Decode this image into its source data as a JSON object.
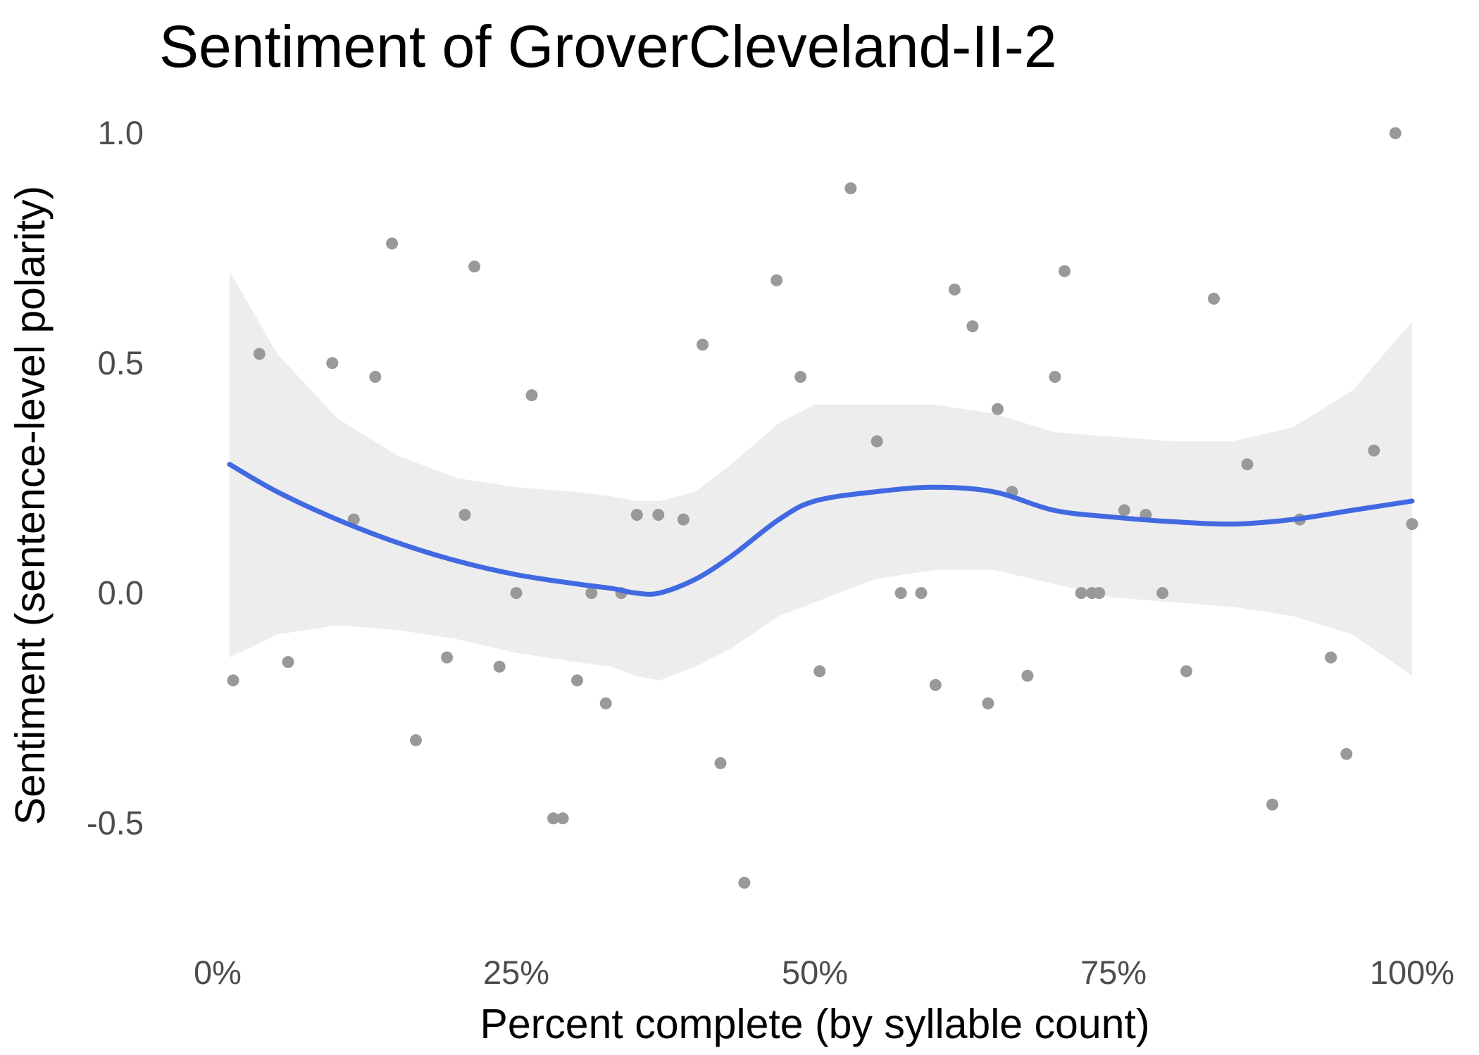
{
  "chart_data": {
    "type": "scatter",
    "title": "Sentiment of GroverCleveland-II-2",
    "xlabel": "Percent complete (by syllable count)",
    "ylabel": "Sentiment (sentence-level polarity)",
    "x_unit": "percent",
    "xlim": [
      -1,
      101
    ],
    "ylim": [
      -0.7,
      1.06
    ],
    "x_ticks": [
      0,
      25,
      50,
      75,
      100
    ],
    "x_tick_labels": [
      "0%",
      "25%",
      "50%",
      "75%",
      "100%"
    ],
    "y_ticks": [
      -0.5,
      0.0,
      0.5,
      1.0
    ],
    "y_tick_labels": [
      "-0.5",
      "0.0",
      "0.5",
      "1.0"
    ],
    "grid": false,
    "colors": {
      "points": "#999999",
      "smooth_line": "#4169E1",
      "confidence_band": "#ebebeb"
    },
    "points": [
      {
        "x": 1.3,
        "y": -0.19
      },
      {
        "x": 3.5,
        "y": 0.52
      },
      {
        "x": 5.9,
        "y": -0.15
      },
      {
        "x": 9.6,
        "y": 0.5
      },
      {
        "x": 11.4,
        "y": 0.16
      },
      {
        "x": 13.2,
        "y": 0.47
      },
      {
        "x": 14.6,
        "y": 0.76
      },
      {
        "x": 16.6,
        "y": -0.32
      },
      {
        "x": 19.2,
        "y": -0.14
      },
      {
        "x": 20.7,
        "y": 0.17
      },
      {
        "x": 21.5,
        "y": 0.71
      },
      {
        "x": 23.6,
        "y": -0.16
      },
      {
        "x": 25.0,
        "y": 0.0
      },
      {
        "x": 26.3,
        "y": 0.43
      },
      {
        "x": 28.1,
        "y": -0.49
      },
      {
        "x": 28.9,
        "y": -0.49
      },
      {
        "x": 30.1,
        "y": -0.19
      },
      {
        "x": 31.3,
        "y": 0.0
      },
      {
        "x": 32.5,
        "y": -0.24
      },
      {
        "x": 33.8,
        "y": 0.0
      },
      {
        "x": 35.1,
        "y": 0.17
      },
      {
        "x": 36.9,
        "y": 0.17
      },
      {
        "x": 39.0,
        "y": 0.16
      },
      {
        "x": 40.6,
        "y": 0.54
      },
      {
        "x": 42.1,
        "y": -0.37
      },
      {
        "x": 44.1,
        "y": -0.63
      },
      {
        "x": 46.8,
        "y": 0.68
      },
      {
        "x": 48.8,
        "y": 0.47
      },
      {
        "x": 50.4,
        "y": -0.17
      },
      {
        "x": 53.0,
        "y": 0.88
      },
      {
        "x": 55.2,
        "y": 0.33
      },
      {
        "x": 57.2,
        "y": 0.0
      },
      {
        "x": 58.9,
        "y": 0.0
      },
      {
        "x": 60.1,
        "y": -0.2
      },
      {
        "x": 61.7,
        "y": 0.66
      },
      {
        "x": 63.2,
        "y": 0.58
      },
      {
        "x": 64.5,
        "y": -0.24
      },
      {
        "x": 65.3,
        "y": 0.4
      },
      {
        "x": 66.5,
        "y": 0.22
      },
      {
        "x": 67.8,
        "y": -0.18
      },
      {
        "x": 70.1,
        "y": 0.47
      },
      {
        "x": 70.9,
        "y": 0.7
      },
      {
        "x": 72.3,
        "y": 0.0
      },
      {
        "x": 73.2,
        "y": 0.0
      },
      {
        "x": 73.8,
        "y": 0.0
      },
      {
        "x": 75.9,
        "y": 0.18
      },
      {
        "x": 77.7,
        "y": 0.17
      },
      {
        "x": 79.1,
        "y": 0.0
      },
      {
        "x": 81.1,
        "y": -0.17
      },
      {
        "x": 83.4,
        "y": 0.64
      },
      {
        "x": 86.2,
        "y": 0.28
      },
      {
        "x": 88.3,
        "y": -0.46
      },
      {
        "x": 90.6,
        "y": 0.16
      },
      {
        "x": 93.2,
        "y": -0.14
      },
      {
        "x": 94.5,
        "y": -0.35
      },
      {
        "x": 96.8,
        "y": 0.31
      },
      {
        "x": 98.6,
        "y": 1.0
      },
      {
        "x": 100.0,
        "y": 0.15
      }
    ],
    "smooth": {
      "x": [
        1.0,
        5,
        10,
        15,
        20,
        25,
        30,
        33,
        35,
        37,
        40,
        43,
        47,
        50,
        55,
        60,
        65,
        70,
        75,
        80,
        85,
        90,
        95,
        100
      ],
      "y": [
        0.28,
        0.22,
        0.16,
        0.11,
        0.07,
        0.04,
        0.02,
        0.01,
        0.0,
        0.0,
        0.03,
        0.08,
        0.16,
        0.2,
        0.22,
        0.23,
        0.22,
        0.18,
        0.165,
        0.155,
        0.15,
        0.16,
        0.18,
        0.2
      ],
      "upper": [
        0.7,
        0.52,
        0.38,
        0.3,
        0.25,
        0.23,
        0.22,
        0.21,
        0.2,
        0.2,
        0.22,
        0.28,
        0.37,
        0.41,
        0.41,
        0.41,
        0.39,
        0.35,
        0.34,
        0.33,
        0.33,
        0.36,
        0.44,
        0.59
      ],
      "lower": [
        -0.14,
        -0.09,
        -0.07,
        -0.08,
        -0.1,
        -0.13,
        -0.15,
        -0.16,
        -0.18,
        -0.19,
        -0.16,
        -0.12,
        -0.05,
        -0.02,
        0.03,
        0.05,
        0.05,
        0.02,
        -0.01,
        -0.02,
        -0.03,
        -0.05,
        -0.09,
        -0.18
      ]
    }
  }
}
